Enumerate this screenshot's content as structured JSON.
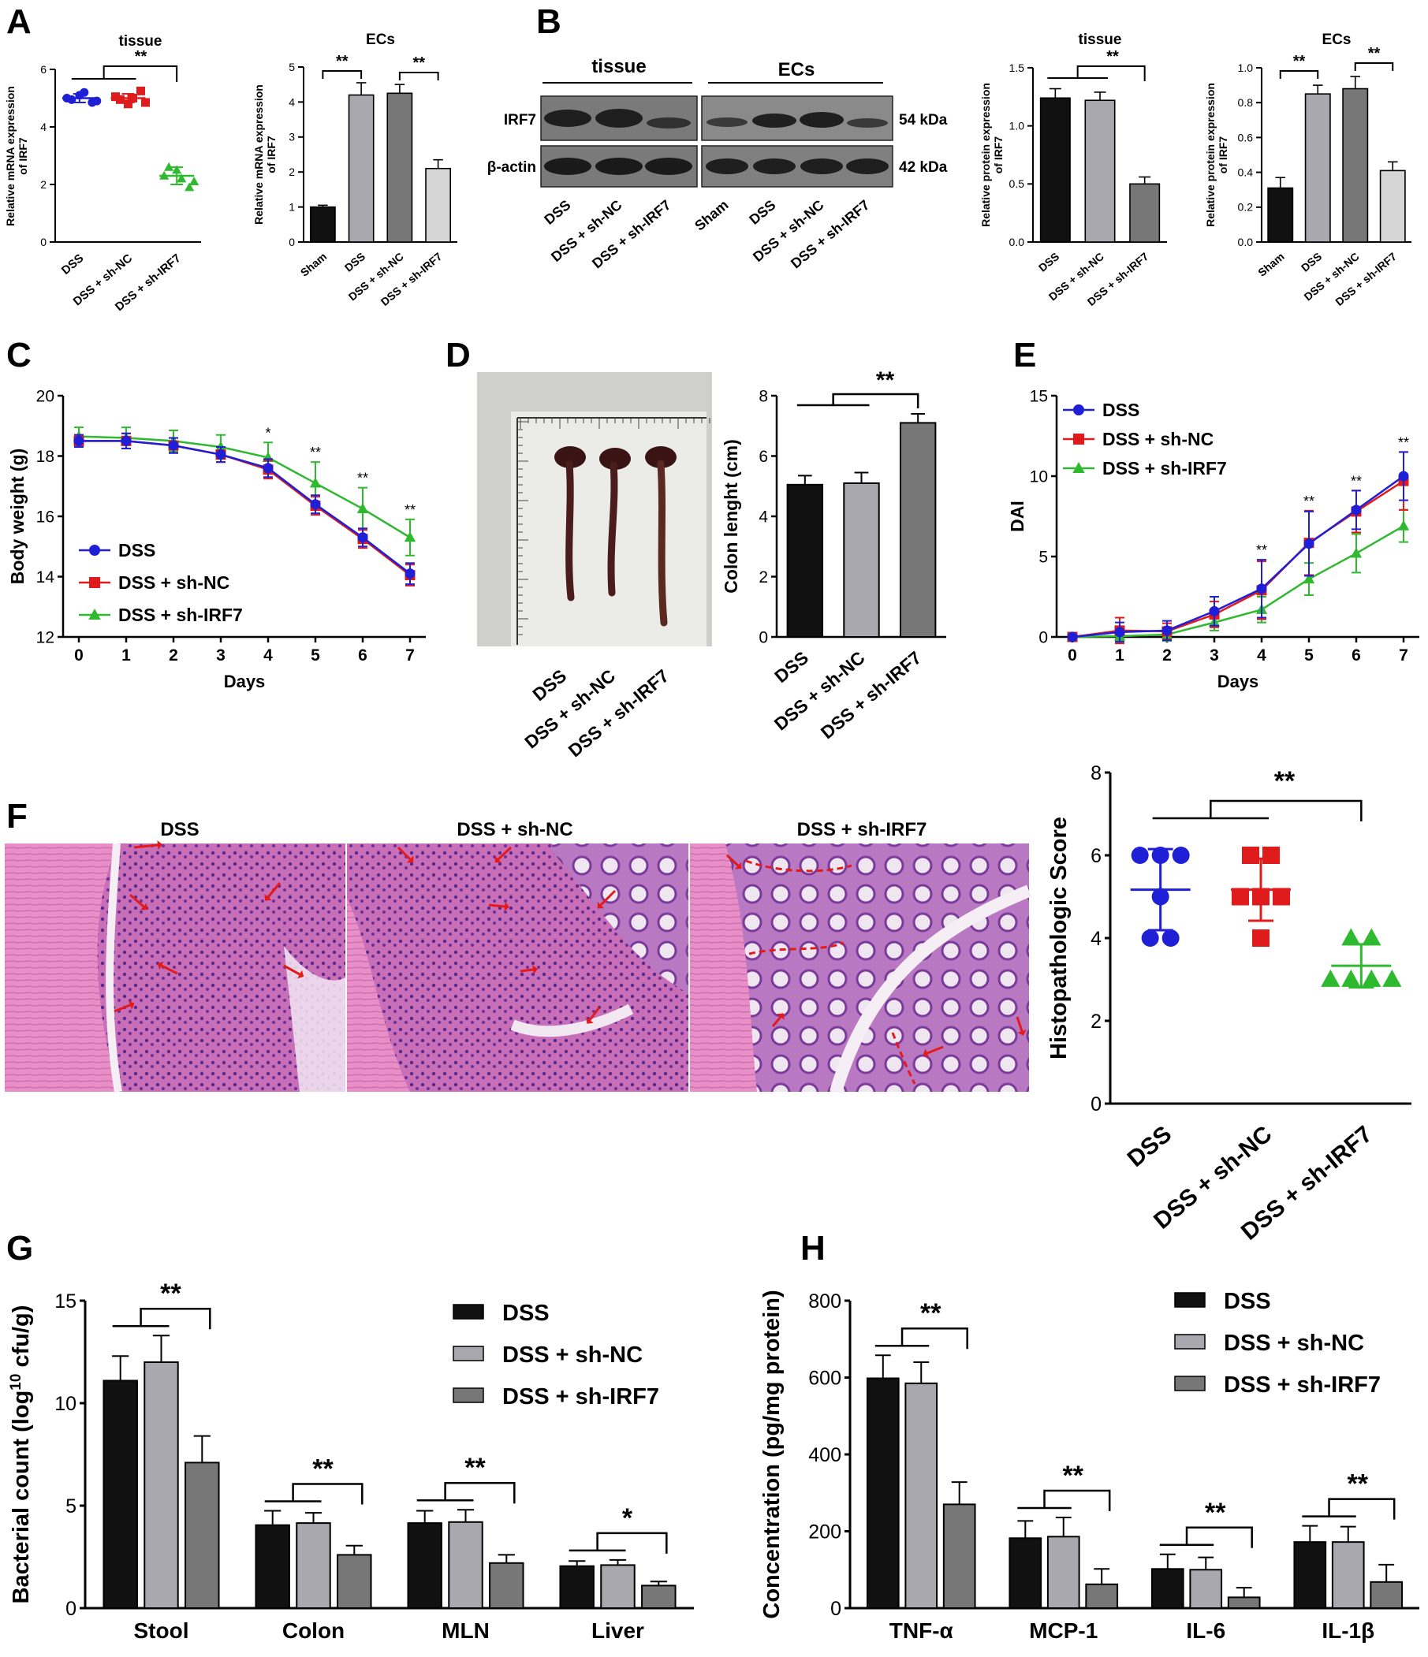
{
  "groups3": [
    "DSS",
    "DSS + sh-NC",
    "DSS + sh-IRF7"
  ],
  "groups4": [
    "Sham",
    "DSS",
    "DSS + sh-NC",
    "DSS + sh-IRF7"
  ],
  "colors": {
    "dss_blue": "#1f1fd6",
    "shnc_red": "#e01b1b",
    "shirf7_green": "#2fb92f",
    "bar_black": "#111111",
    "bar_lightgray": "#a8a8ae",
    "bar_gray": "#777777",
    "bar_verylight": "#d6d6d6",
    "arrow_red": "#e41a1a"
  },
  "panels": {
    "A": {
      "letter": "A"
    },
    "B": {
      "letter": "B",
      "blot": {
        "tissue_label": "tissue",
        "ecs_label": "ECs",
        "rows": [
          {
            "name": "IRF7",
            "kda": "54 kDa"
          },
          {
            "name": "β-actin",
            "kda": "42 kDa"
          }
        ],
        "lanes": [
          "DSS",
          "DSS + sh-NC",
          "DSS + sh-IRF7",
          "Sham",
          "DSS",
          "DSS + sh-NC",
          "DSS + sh-IRF7"
        ]
      }
    },
    "C": {
      "letter": "C"
    },
    "D": {
      "letter": "D",
      "photo_labels": [
        "DSS",
        "DSS + sh-NC",
        "DSS + sh-IRF7"
      ]
    },
    "E": {
      "letter": "E"
    },
    "F": {
      "letter": "F",
      "histo_labels": [
        "DSS",
        "DSS + sh-NC",
        "DSS + sh-IRF7"
      ]
    },
    "G": {
      "letter": "G"
    },
    "H": {
      "letter": "H"
    }
  },
  "chart_data": [
    {
      "id": "A1",
      "type": "scatter",
      "title": "tissue",
      "ylabel": "Relative mRNA expression of IRF7",
      "categories": [
        "DSS",
        "DSS + sh-NC",
        "DSS + sh-IRF7"
      ],
      "ylim": [
        0,
        6
      ],
      "yticks": [
        0,
        2,
        4,
        6
      ],
      "points": [
        [
          5.0,
          5.1,
          4.85,
          4.95,
          5.2,
          4.9
        ],
        [
          5.05,
          4.8,
          5.25,
          4.95,
          5.0,
          4.85
        ],
        [
          2.3,
          2.5,
          1.9,
          2.6,
          2.2,
          2.1
        ]
      ],
      "mean": [
        5.0,
        5.0,
        2.3
      ],
      "sd": [
        0.15,
        0.15,
        0.3
      ],
      "significance": "**"
    },
    {
      "id": "A2",
      "type": "bar",
      "title": "ECs",
      "ylabel": "Relative mRNA expression of IRF7",
      "categories": [
        "Sham",
        "DSS",
        "DSS + sh-NC",
        "DSS + sh-IRF7"
      ],
      "ylim": [
        0,
        5
      ],
      "yticks": [
        0,
        1,
        2,
        3,
        4,
        5
      ],
      "values": [
        1.0,
        4.2,
        4.25,
        2.1
      ],
      "errors": [
        0.05,
        0.35,
        0.25,
        0.25
      ],
      "significance": [
        "**",
        "**"
      ]
    },
    {
      "id": "B1",
      "type": "bar",
      "title": "tissue",
      "ylabel": "Relative protein expression of IRF7",
      "categories": [
        "DSS",
        "DSS + sh-NC",
        "DSS + sh-IRF7"
      ],
      "ylim": [
        0,
        1.5
      ],
      "yticks": [
        0.0,
        0.5,
        1.0,
        1.5
      ],
      "values": [
        1.24,
        1.22,
        0.5
      ],
      "errors": [
        0.08,
        0.07,
        0.06
      ],
      "significance": "**"
    },
    {
      "id": "B2",
      "type": "bar",
      "title": "ECs",
      "ylabel": "Relative protein expression of IRF7",
      "categories": [
        "Sham",
        "DSS",
        "DSS + sh-NC",
        "DSS + sh-IRF7"
      ],
      "ylim": [
        0,
        1.0
      ],
      "yticks": [
        0.0,
        0.2,
        0.4,
        0.6,
        0.8,
        1.0
      ],
      "values": [
        0.31,
        0.85,
        0.88,
        0.41
      ],
      "errors": [
        0.06,
        0.05,
        0.07,
        0.05
      ],
      "significance": [
        "**",
        "**"
      ]
    },
    {
      "id": "C",
      "type": "line",
      "xlabel": "Days",
      "ylabel": "Body weight (g)",
      "x": [
        0,
        1,
        2,
        3,
        4,
        5,
        6,
        7
      ],
      "ylim": [
        12,
        20
      ],
      "yticks": [
        12,
        14,
        16,
        18,
        20
      ],
      "series": [
        {
          "name": "DSS",
          "values": [
            18.5,
            18.5,
            18.35,
            18.05,
            17.6,
            16.4,
            15.3,
            14.1
          ],
          "errors": [
            0.2,
            0.25,
            0.25,
            0.25,
            0.3,
            0.3,
            0.3,
            0.35
          ]
        },
        {
          "name": "DSS + sh-NC",
          "values": [
            18.5,
            18.5,
            18.35,
            18.05,
            17.55,
            16.35,
            15.25,
            14.05
          ],
          "errors": [
            0.2,
            0.25,
            0.25,
            0.25,
            0.3,
            0.3,
            0.3,
            0.35
          ]
        },
        {
          "name": "DSS + sh-IRF7",
          "values": [
            18.65,
            18.6,
            18.5,
            18.3,
            17.95,
            17.1,
            16.25,
            15.3
          ],
          "errors": [
            0.3,
            0.35,
            0.35,
            0.4,
            0.5,
            0.7,
            0.7,
            0.6
          ]
        }
      ],
      "annotations": {
        "4": "*",
        "5": "**",
        "6": "**",
        "7": "**"
      }
    },
    {
      "id": "D",
      "type": "bar",
      "ylabel": "Colon lenght (cm)",
      "categories": [
        "DSS",
        "DSS + sh-NC",
        "DSS + sh-IRF7"
      ],
      "ylim": [
        0,
        8
      ],
      "yticks": [
        0,
        2,
        4,
        6,
        8
      ],
      "values": [
        5.05,
        5.1,
        7.1
      ],
      "errors": [
        0.3,
        0.35,
        0.3
      ],
      "significance": "**"
    },
    {
      "id": "E",
      "type": "line",
      "xlabel": "Days",
      "ylabel": "DAI",
      "x": [
        0,
        1,
        2,
        3,
        4,
        5,
        6,
        7
      ],
      "ylim": [
        0,
        15
      ],
      "yticks": [
        0,
        5,
        10,
        15
      ],
      "series": [
        {
          "name": "DSS",
          "values": [
            0,
            0.3,
            0.4,
            1.6,
            3.0,
            5.8,
            7.9,
            10.0
          ],
          "errors": [
            0.1,
            0.6,
            0.6,
            0.9,
            1.8,
            2.0,
            1.2,
            1.5
          ]
        },
        {
          "name": "DSS + sh-NC",
          "values": [
            0,
            0.4,
            0.35,
            1.4,
            2.9,
            5.85,
            7.8,
            9.7
          ],
          "errors": [
            0.1,
            0.8,
            0.5,
            0.8,
            1.8,
            2.0,
            1.3,
            1.8
          ]
        },
        {
          "name": "DSS + sh-IRF7",
          "values": [
            0,
            0.05,
            0.15,
            0.9,
            1.7,
            3.6,
            5.2,
            6.9
          ],
          "errors": [
            0.05,
            0.3,
            0.4,
            0.5,
            0.8,
            1.0,
            1.2,
            1.0
          ]
        }
      ],
      "annotations": {
        "4": "**",
        "5": "**",
        "6": "**",
        "7": "**"
      }
    },
    {
      "id": "F",
      "type": "scatter",
      "ylabel": "Histopathologic Score",
      "categories": [
        "DSS",
        "DSS + sh-NC",
        "DSS + sh-IRF7"
      ],
      "ylim": [
        0,
        8
      ],
      "yticks": [
        0,
        2,
        4,
        6,
        8
      ],
      "points": [
        [
          6,
          6,
          6,
          5,
          4,
          4
        ],
        [
          6,
          6,
          5,
          5,
          5,
          4
        ],
        [
          4,
          4,
          3,
          3,
          3,
          3
        ]
      ],
      "mean": [
        5.17,
        5.17,
        3.33
      ],
      "sd": [
        0.98,
        0.75,
        0.52
      ],
      "significance": "**"
    },
    {
      "id": "G",
      "type": "bar",
      "ylabel": "Bacterial count (log10 cfu/g)",
      "categories": [
        "Stool",
        "Colon",
        "MLN",
        "Liver"
      ],
      "ylim": [
        0,
        15
      ],
      "yticks": [
        0,
        5,
        10,
        15
      ],
      "series": [
        {
          "name": "DSS",
          "values": [
            11.1,
            4.05,
            4.15,
            2.05
          ],
          "errors": [
            1.2,
            0.7,
            0.6,
            0.25
          ]
        },
        {
          "name": "DSS + sh-NC",
          "values": [
            12.0,
            4.15,
            4.2,
            2.1
          ],
          "errors": [
            1.3,
            0.5,
            0.6,
            0.25
          ]
        },
        {
          "name": "DSS + sh-IRF7",
          "values": [
            7.1,
            2.6,
            2.2,
            1.1
          ],
          "errors": [
            1.3,
            0.45,
            0.4,
            0.2
          ]
        }
      ],
      "significance": [
        "**",
        "**",
        "**",
        "*"
      ]
    },
    {
      "id": "H",
      "type": "bar",
      "ylabel": "Concentration (pg/mg protein)",
      "categories": [
        "TNF-α",
        "MCP-1",
        "IL-6",
        "IL-1β"
      ],
      "ylim": [
        0,
        800
      ],
      "yticks": [
        0,
        200,
        400,
        600,
        800
      ],
      "series": [
        {
          "name": "DSS",
          "values": [
            598,
            182,
            102,
            172
          ],
          "errors": [
            60,
            45,
            38,
            42
          ]
        },
        {
          "name": "DSS + sh-NC",
          "values": [
            585,
            186,
            100,
            172
          ],
          "errors": [
            55,
            50,
            32,
            40
          ]
        },
        {
          "name": "DSS + sh-IRF7",
          "values": [
            270,
            62,
            28,
            68
          ],
          "errors": [
            58,
            40,
            25,
            45
          ]
        }
      ],
      "significance": [
        "**",
        "**",
        "**",
        "**"
      ]
    }
  ]
}
